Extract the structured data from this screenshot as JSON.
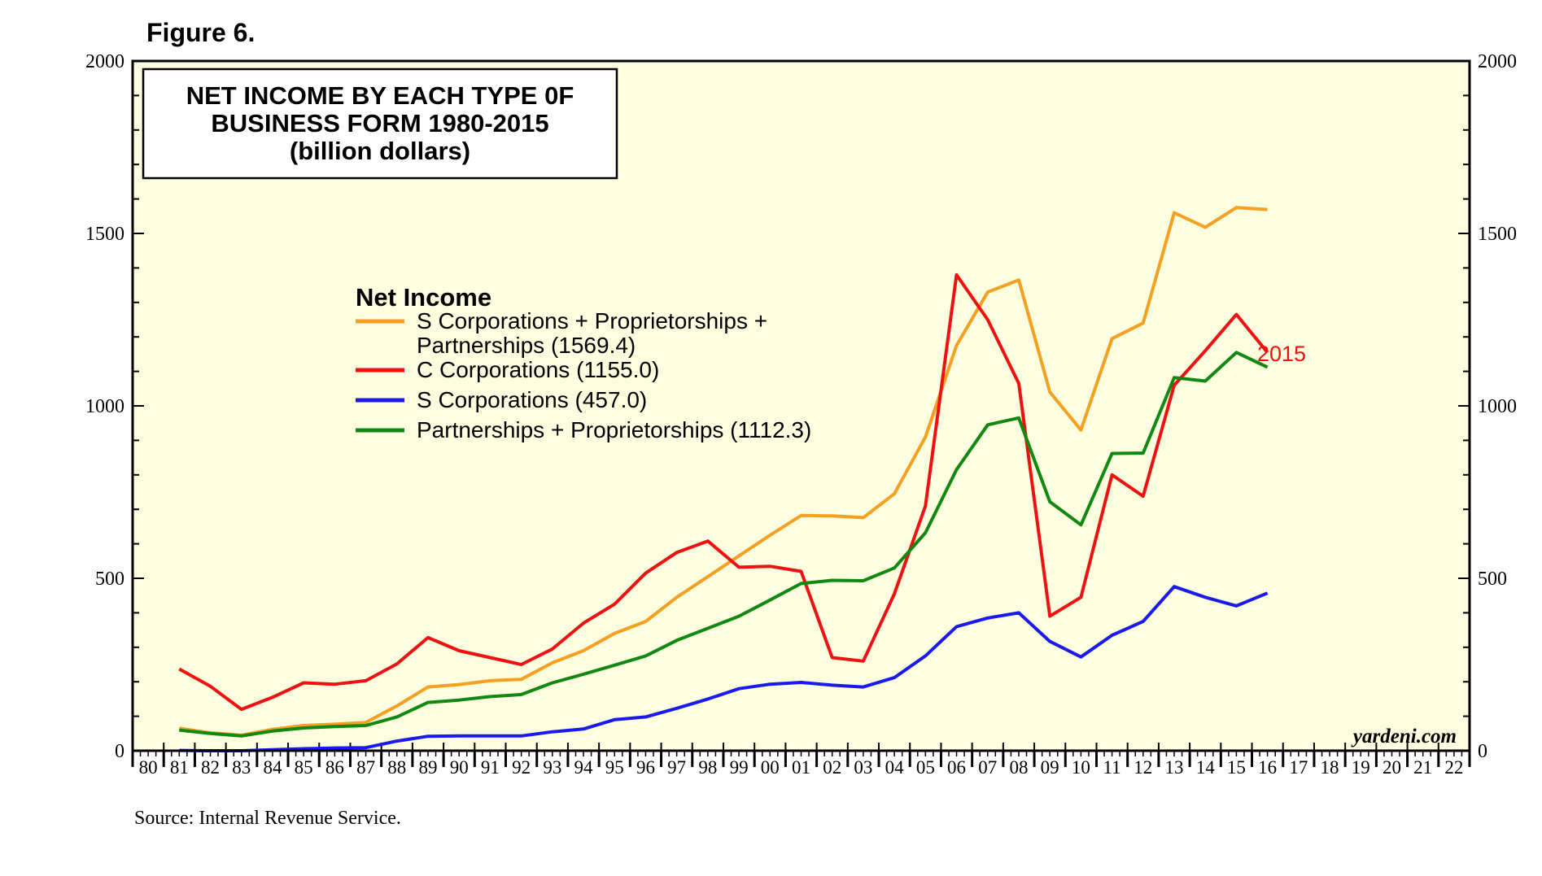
{
  "figure_label": "Figure 6.",
  "source": "Source: Internal Revenue Service.",
  "watermark": "yardeni.com",
  "colors": {
    "plot_bg": "#fdfde0",
    "s_corp_prop_part": "#f5a020",
    "c_corp": "#ee1111",
    "s_corp": "#1a1aee",
    "part_prop": "#118811"
  },
  "chart_data": {
    "type": "line",
    "title_lines": [
      "NET INCOME BY EACH TYPE 0F",
      "BUSINESS FORM 1980-2015",
      "(billion dollars)"
    ],
    "legend_title": "Net Income",
    "end_label": "2015",
    "ylim": [
      0,
      2000
    ],
    "yticks": [
      "0",
      "500",
      "1000",
      "1500",
      "2000"
    ],
    "x_categories": [
      "80",
      "81",
      "82",
      "83",
      "84",
      "85",
      "86",
      "87",
      "88",
      "89",
      "90",
      "91",
      "92",
      "93",
      "94",
      "95",
      "96",
      "97",
      "98",
      "99",
      "00",
      "01",
      "02",
      "03",
      "04",
      "05",
      "06",
      "07",
      "08",
      "09",
      "10",
      "11",
      "12",
      "13",
      "14",
      "15",
      "16",
      "17",
      "18",
      "19",
      "20",
      "21",
      "22"
    ],
    "x_start_year": 1980,
    "x_end_year": 2023,
    "series": [
      {
        "key": "s_corp_prop_part",
        "legend_lines": [
          "S Corporations + Proprietorships +",
          "Partnerships (1569.4)"
        ],
        "start_year": 1981,
        "values": [
          65,
          52,
          45,
          62,
          73,
          77,
          82,
          130,
          185,
          192,
          203,
          207,
          255,
          290,
          340,
          375,
          445,
          505,
          565,
          625,
          682,
          681,
          676,
          745,
          910,
          1175,
          1330,
          1365,
          1040,
          930,
          1195,
          1240,
          1560,
          1518,
          1575,
          1569.4
        ]
      },
      {
        "key": "c_corp",
        "legend_lines": [
          "C Corporations (1155.0)"
        ],
        "start_year": 1981,
        "values": [
          237,
          187,
          120,
          155,
          197,
          193,
          203,
          252,
          328,
          290,
          270,
          250,
          295,
          370,
          425,
          515,
          575,
          608,
          532,
          535,
          520,
          270,
          260,
          455,
          710,
          1380,
          1250,
          1065,
          390,
          445,
          800,
          738,
          1060,
          1160,
          1265,
          1155.0
        ]
      },
      {
        "key": "s_corp",
        "legend_lines": [
          "S Corporations (457.0)"
        ],
        "start_year": 1981,
        "values": [
          1,
          0,
          0,
          3,
          6,
          8,
          9,
          28,
          42,
          43,
          43,
          43,
          55,
          63,
          90,
          98,
          123,
          150,
          180,
          193,
          198,
          190,
          185,
          212,
          275,
          360,
          385,
          400,
          317,
          272,
          335,
          375,
          476,
          445,
          420,
          457.0
        ]
      },
      {
        "key": "part_prop",
        "legend_lines": [
          "Partnerships + Proprietorships (1112.3)"
        ],
        "start_year": 1981,
        "values": [
          60,
          50,
          43,
          57,
          66,
          70,
          73,
          98,
          140,
          147,
          157,
          163,
          197,
          222,
          248,
          275,
          320,
          355,
          390,
          437,
          485,
          494,
          493,
          530,
          632,
          815,
          945,
          965,
          722,
          655,
          862,
          863,
          1082,
          1072,
          1155,
          1112.3
        ]
      }
    ]
  }
}
